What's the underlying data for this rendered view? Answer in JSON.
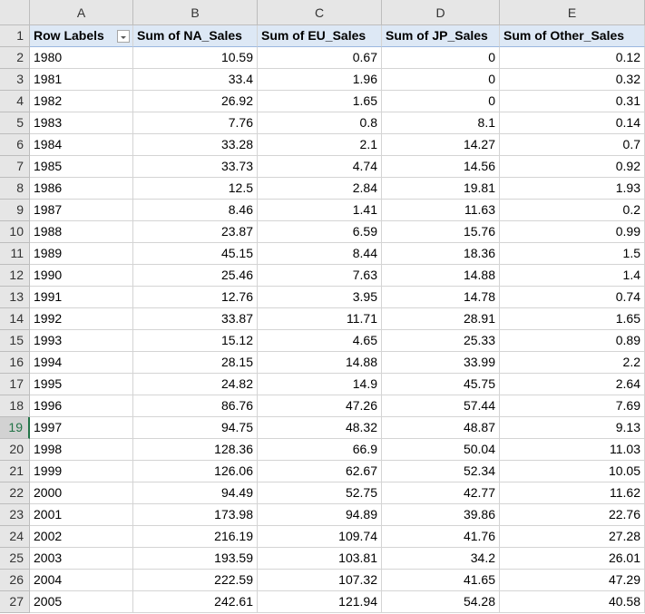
{
  "column_letters": [
    "A",
    "B",
    "C",
    "D",
    "E"
  ],
  "row_numbers": [
    1,
    2,
    3,
    4,
    5,
    6,
    7,
    8,
    9,
    10,
    11,
    12,
    13,
    14,
    15,
    16,
    17,
    18,
    19,
    20,
    21,
    22,
    23,
    24,
    25,
    26,
    27
  ],
  "table": {
    "header": [
      "Row Labels",
      "Sum of NA_Sales",
      "Sum of EU_Sales",
      "Sum of JP_Sales",
      "Sum of Other_Sales"
    ],
    "rows": [
      [
        "1980",
        "10.59",
        "0.67",
        "0",
        "0.12"
      ],
      [
        "1981",
        "33.4",
        "1.96",
        "0",
        "0.32"
      ],
      [
        "1982",
        "26.92",
        "1.65",
        "0",
        "0.31"
      ],
      [
        "1983",
        "7.76",
        "0.8",
        "8.1",
        "0.14"
      ],
      [
        "1984",
        "33.28",
        "2.1",
        "14.27",
        "0.7"
      ],
      [
        "1985",
        "33.73",
        "4.74",
        "14.56",
        "0.92"
      ],
      [
        "1986",
        "12.5",
        "2.84",
        "19.81",
        "1.93"
      ],
      [
        "1987",
        "8.46",
        "1.41",
        "11.63",
        "0.2"
      ],
      [
        "1988",
        "23.87",
        "6.59",
        "15.76",
        "0.99"
      ],
      [
        "1989",
        "45.15",
        "8.44",
        "18.36",
        "1.5"
      ],
      [
        "1990",
        "25.46",
        "7.63",
        "14.88",
        "1.4"
      ],
      [
        "1991",
        "12.76",
        "3.95",
        "14.78",
        "0.74"
      ],
      [
        "1992",
        "33.87",
        "11.71",
        "28.91",
        "1.65"
      ],
      [
        "1993",
        "15.12",
        "4.65",
        "25.33",
        "0.89"
      ],
      [
        "1994",
        "28.15",
        "14.88",
        "33.99",
        "2.2"
      ],
      [
        "1995",
        "24.82",
        "14.9",
        "45.75",
        "2.64"
      ],
      [
        "1996",
        "86.76",
        "47.26",
        "57.44",
        "7.69"
      ],
      [
        "1997",
        "94.75",
        "48.32",
        "48.87",
        "9.13"
      ],
      [
        "1998",
        "128.36",
        "66.9",
        "50.04",
        "11.03"
      ],
      [
        "1999",
        "126.06",
        "62.67",
        "52.34",
        "10.05"
      ],
      [
        "2000",
        "94.49",
        "52.75",
        "42.77",
        "11.62"
      ],
      [
        "2001",
        "173.98",
        "94.89",
        "39.86",
        "22.76"
      ],
      [
        "2002",
        "216.19",
        "109.74",
        "41.76",
        "27.28"
      ],
      [
        "2003",
        "193.59",
        "103.81",
        "34.2",
        "26.01"
      ],
      [
        "2004",
        "222.59",
        "107.32",
        "41.65",
        "47.29"
      ],
      [
        "2005",
        "242.61",
        "121.94",
        "54.28",
        "40.58"
      ]
    ]
  }
}
